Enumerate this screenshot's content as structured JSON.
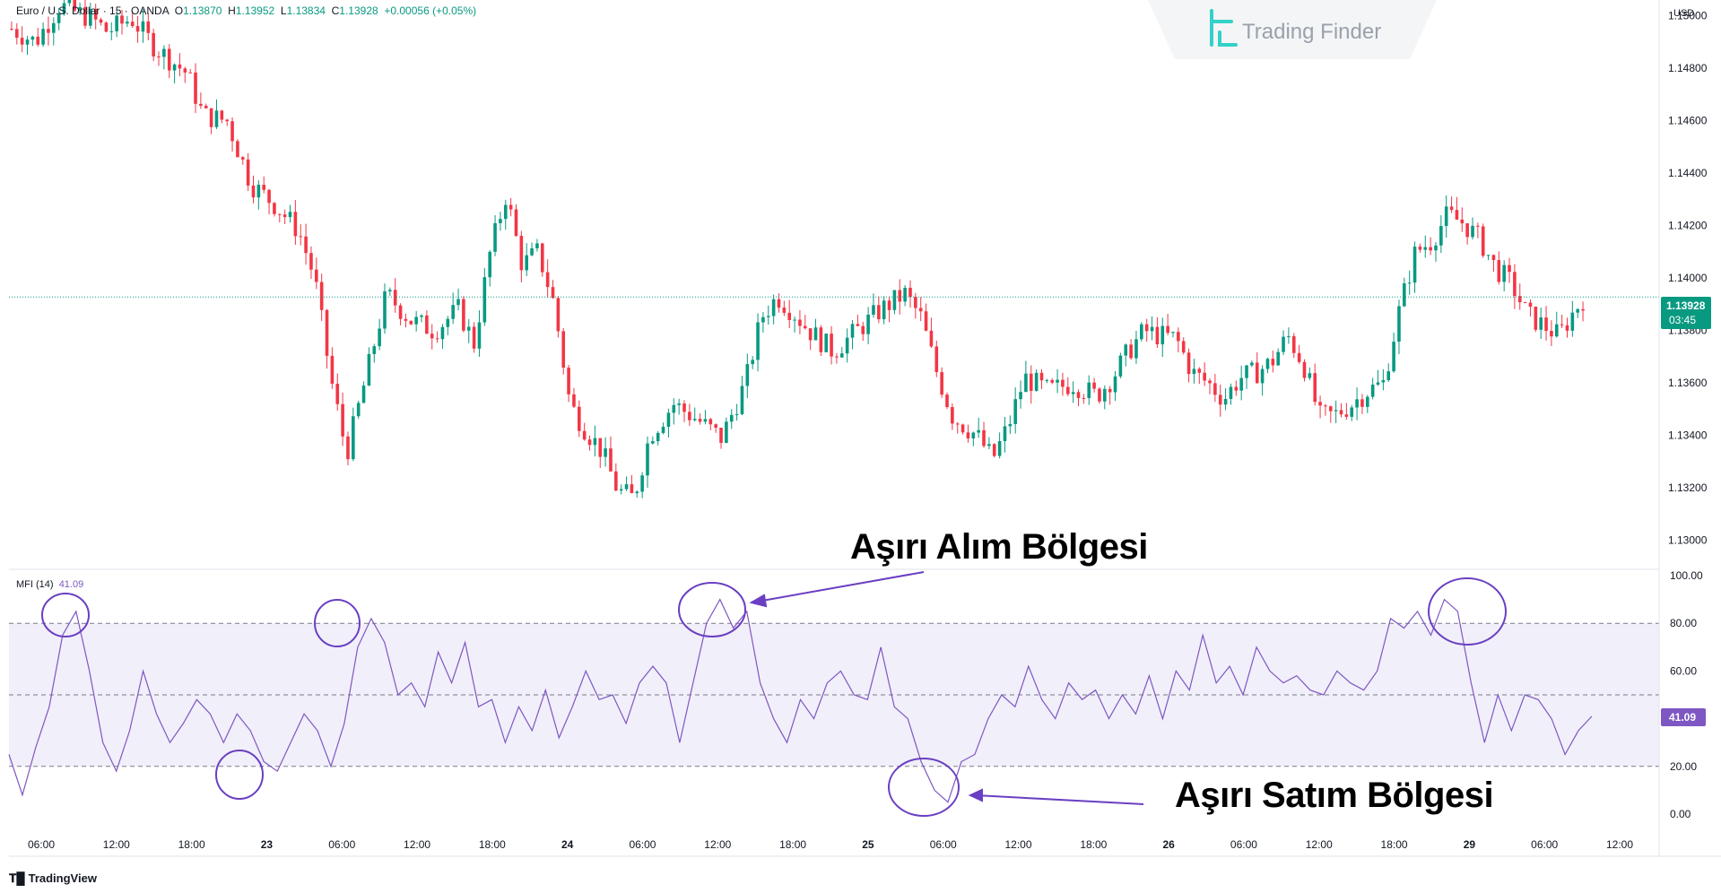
{
  "header": {
    "symbol": "Euro / U.S. Dollar · 15 · OANDA",
    "o_label": "O",
    "o_value": "1.13870",
    "h_label": "H",
    "h_value": "1.13952",
    "l_label": "L",
    "l_value": "1.13834",
    "c_label": "C",
    "c_value": "1.13928",
    "change": "+0.00056 (+0.05%)"
  },
  "watermark": {
    "brand": "Trading Finder"
  },
  "currency": "USD",
  "last_price": {
    "value": "1.13928",
    "countdown": "03:45",
    "color": "#089981"
  },
  "indicator": {
    "label": "MFI (14)",
    "value": "41.09",
    "color": "#7e57c2"
  },
  "annotations": {
    "overbought": "Aşırı Alım Bölgesi",
    "oversold": "Aşırı Satım Bölgesi"
  },
  "footer": {
    "brand": "TradingView"
  },
  "colors": {
    "up": "#089981",
    "down": "#f23645",
    "mfi": "#7e57c2",
    "band": "#f1effa",
    "circle": "#6a3fc2"
  },
  "chart_data": [
    {
      "type": "candlestick",
      "title": "",
      "y_ticks": [
        "1.15000",
        "1.14800",
        "1.14600",
        "1.14400",
        "1.14200",
        "1.14000",
        "1.13800",
        "1.13600",
        "1.13400",
        "1.13200",
        "1.13000"
      ],
      "ylim": [
        1.129,
        1.1506
      ],
      "x_ticks": [
        "06:00",
        "12:00",
        "18:00",
        "23",
        "06:00",
        "12:00",
        "18:00",
        "24",
        "06:00",
        "12:00",
        "18:00",
        "25",
        "06:00",
        "12:00",
        "18:00",
        "26",
        "06:00",
        "12:00",
        "18:00",
        "29",
        "06:00",
        "12:00"
      ],
      "close_path": [
        [
          0,
          1.1495
        ],
        [
          3,
          1.149
        ],
        [
          6,
          1.1504
        ],
        [
          10,
          1.1499
        ],
        [
          12,
          1.1494
        ],
        [
          15,
          1.1499
        ],
        [
          18,
          1.1488
        ],
        [
          22,
          1.1478
        ],
        [
          24,
          1.1462
        ],
        [
          27,
          1.146
        ],
        [
          30,
          1.1436
        ],
        [
          33,
          1.1428
        ],
        [
          36,
          1.1418
        ],
        [
          38,
          1.14
        ],
        [
          40,
          1.1362
        ],
        [
          42,
          1.1333
        ],
        [
          44,
          1.1357
        ],
        [
          47,
          1.1394
        ],
        [
          50,
          1.1384
        ],
        [
          53,
          1.138
        ],
        [
          56,
          1.1388
        ],
        [
          58,
          1.1375
        ],
        [
          60,
          1.141
        ],
        [
          62,
          1.1432
        ],
        [
          64,
          1.1405
        ],
        [
          66,
          1.141
        ],
        [
          68,
          1.139
        ],
        [
          70,
          1.1352
        ],
        [
          72,
          1.1342
        ],
        [
          74,
          1.1334
        ],
        [
          76,
          1.1319
        ],
        [
          78,
          1.1316
        ],
        [
          80,
          1.134
        ],
        [
          83,
          1.1352
        ],
        [
          86,
          1.1346
        ],
        [
          89,
          1.1339
        ],
        [
          92,
          1.136
        ],
        [
          94,
          1.1385
        ],
        [
          96,
          1.1393
        ],
        [
          98,
          1.1387
        ],
        [
          100,
          1.138
        ],
        [
          103,
          1.1372
        ],
        [
          106,
          1.138
        ],
        [
          109,
          1.1388
        ],
        [
          112,
          1.1394
        ],
        [
          114,
          1.1385
        ],
        [
          116,
          1.1364
        ],
        [
          118,
          1.1347
        ],
        [
          121,
          1.134
        ],
        [
          123,
          1.1331
        ],
        [
          125,
          1.1344
        ],
        [
          127,
          1.1362
        ],
        [
          130,
          1.1357
        ],
        [
          133,
          1.136
        ],
        [
          136,
          1.1355
        ],
        [
          138,
          1.1362
        ],
        [
          140,
          1.1372
        ],
        [
          142,
          1.138
        ],
        [
          144,
          1.1378
        ],
        [
          146,
          1.1377
        ],
        [
          148,
          1.1364
        ],
        [
          150,
          1.136
        ],
        [
          152,
          1.1354
        ],
        [
          154,
          1.1362
        ],
        [
          156,
          1.1364
        ],
        [
          158,
          1.1368
        ],
        [
          160,
          1.1378
        ],
        [
          162,
          1.1367
        ],
        [
          164,
          1.1347
        ],
        [
          166,
          1.1348
        ],
        [
          168,
          1.1352
        ],
        [
          170,
          1.1357
        ],
        [
          172,
          1.136
        ],
        [
          174,
          1.1388
        ],
        [
          176,
          1.141
        ],
        [
          178,
          1.1414
        ],
        [
          180,
          1.1424
        ],
        [
          182,
          1.1421
        ],
        [
          184,
          1.1415
        ],
        [
          186,
          1.1404
        ],
        [
          188,
          1.1398
        ],
        [
          190,
          1.1386
        ],
        [
          192,
          1.1382
        ],
        [
          194,
          1.1378
        ],
        [
          196,
          1.1388
        ],
        [
          197,
          1.1392
        ]
      ],
      "last_value": 1.13928
    },
    {
      "type": "line",
      "title": "MFI (14)",
      "series": [
        {
          "name": "MFI (14)"
        }
      ],
      "y_ticks": [
        "100.00",
        "80.00",
        "60.00",
        "40.00",
        "20.00",
        "0.00"
      ],
      "ylim": [
        0,
        100
      ],
      "levels": [
        80,
        50,
        20
      ],
      "points": [
        [
          0,
          25
        ],
        [
          2,
          8
        ],
        [
          4,
          28
        ],
        [
          6,
          45
        ],
        [
          8,
          75
        ],
        [
          10,
          85
        ],
        [
          12,
          60
        ],
        [
          14,
          30
        ],
        [
          16,
          18
        ],
        [
          18,
          35
        ],
        [
          20,
          60
        ],
        [
          22,
          42
        ],
        [
          24,
          30
        ],
        [
          26,
          38
        ],
        [
          28,
          48
        ],
        [
          30,
          42
        ],
        [
          32,
          30
        ],
        [
          34,
          42
        ],
        [
          36,
          35
        ],
        [
          38,
          22
        ],
        [
          40,
          18
        ],
        [
          42,
          30
        ],
        [
          44,
          42
        ],
        [
          46,
          35
        ],
        [
          48,
          20
        ],
        [
          50,
          38
        ],
        [
          52,
          70
        ],
        [
          54,
          82
        ],
        [
          56,
          72
        ],
        [
          58,
          50
        ],
        [
          60,
          55
        ],
        [
          62,
          45
        ],
        [
          64,
          68
        ],
        [
          66,
          55
        ],
        [
          68,
          72
        ],
        [
          70,
          45
        ],
        [
          72,
          48
        ],
        [
          74,
          30
        ],
        [
          76,
          45
        ],
        [
          78,
          35
        ],
        [
          80,
          52
        ],
        [
          82,
          32
        ],
        [
          84,
          45
        ],
        [
          86,
          60
        ],
        [
          88,
          48
        ],
        [
          90,
          50
        ],
        [
          92,
          38
        ],
        [
          94,
          55
        ],
        [
          96,
          62
        ],
        [
          98,
          55
        ],
        [
          100,
          30
        ],
        [
          102,
          55
        ],
        [
          104,
          80
        ],
        [
          106,
          90
        ],
        [
          108,
          78
        ],
        [
          110,
          85
        ],
        [
          112,
          55
        ],
        [
          114,
          40
        ],
        [
          116,
          30
        ],
        [
          118,
          48
        ],
        [
          120,
          40
        ],
        [
          122,
          55
        ],
        [
          124,
          60
        ],
        [
          126,
          50
        ],
        [
          128,
          48
        ],
        [
          130,
          70
        ],
        [
          132,
          45
        ],
        [
          134,
          40
        ],
        [
          136,
          22
        ],
        [
          138,
          10
        ],
        [
          140,
          5
        ],
        [
          142,
          22
        ],
        [
          144,
          25
        ],
        [
          146,
          40
        ],
        [
          148,
          50
        ],
        [
          150,
          45
        ],
        [
          152,
          62
        ],
        [
          154,
          48
        ],
        [
          156,
          40
        ],
        [
          158,
          55
        ],
        [
          160,
          48
        ],
        [
          162,
          52
        ],
        [
          164,
          40
        ],
        [
          166,
          50
        ],
        [
          168,
          42
        ],
        [
          170,
          58
        ],
        [
          172,
          40
        ],
        [
          174,
          60
        ],
        [
          176,
          52
        ],
        [
          178,
          75
        ],
        [
          180,
          55
        ],
        [
          182,
          62
        ],
        [
          184,
          50
        ],
        [
          186,
          70
        ],
        [
          188,
          60
        ],
        [
          190,
          55
        ],
        [
          192,
          58
        ],
        [
          194,
          52
        ],
        [
          196,
          50
        ],
        [
          198,
          60
        ],
        [
          200,
          55
        ],
        [
          202,
          52
        ],
        [
          204,
          60
        ],
        [
          206,
          82
        ],
        [
          208,
          78
        ],
        [
          210,
          85
        ],
        [
          212,
          75
        ],
        [
          214,
          90
        ],
        [
          216,
          85
        ],
        [
          218,
          55
        ],
        [
          220,
          30
        ],
        [
          222,
          50
        ],
        [
          224,
          35
        ],
        [
          226,
          50
        ],
        [
          228,
          48
        ],
        [
          230,
          40
        ],
        [
          232,
          25
        ],
        [
          234,
          35
        ],
        [
          236,
          41
        ]
      ],
      "last_value": 41.09
    }
  ]
}
